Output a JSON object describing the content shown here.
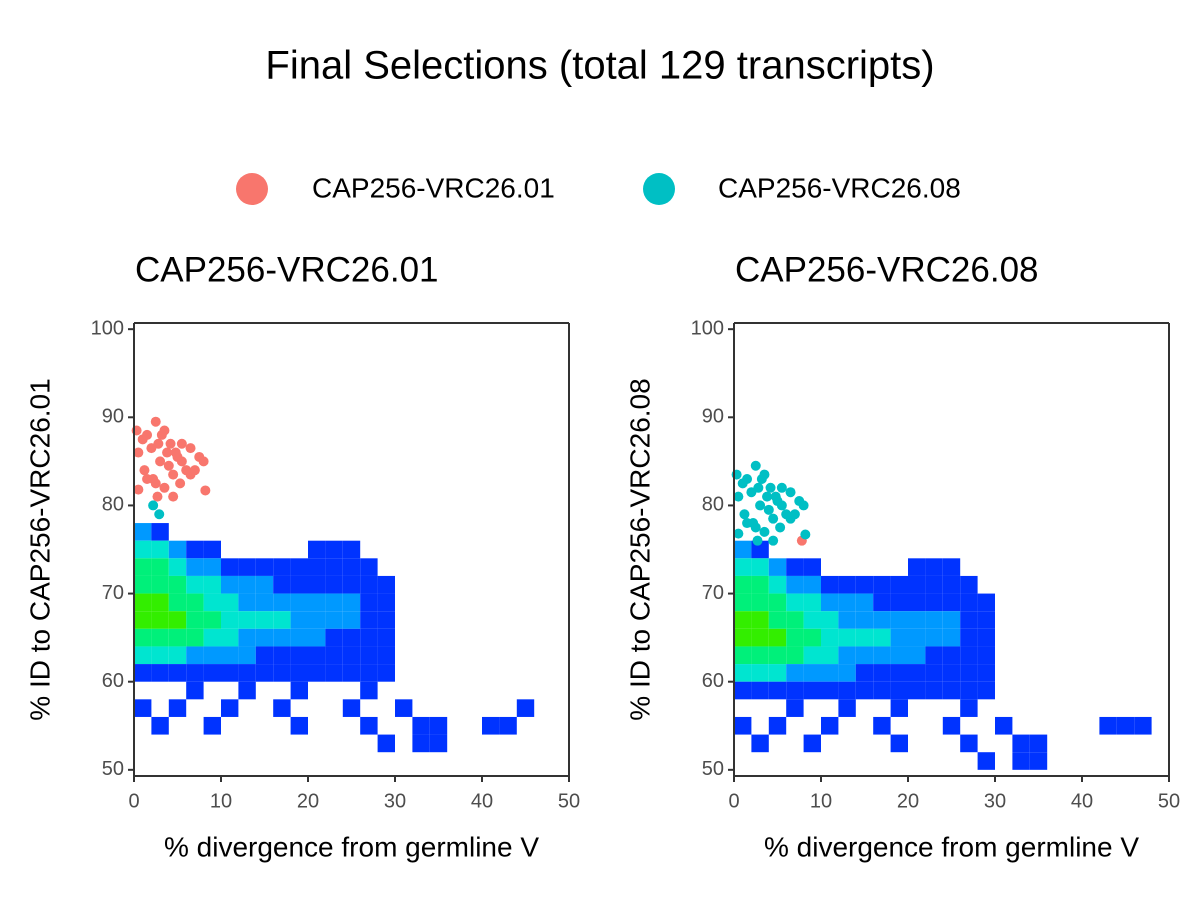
{
  "title": "Final Selections (total 129 transcripts)",
  "chart_data": [
    {
      "type": "scatter",
      "title": "CAP256-VRC26.01",
      "x_label": "% divergence from germline V",
      "y_label": "% ID to CAP256-VRC26.01",
      "xlim": [
        0,
        50
      ],
      "ylim": [
        49.3,
        100.7
      ],
      "xticks": [
        0,
        10,
        20,
        30,
        40,
        50
      ],
      "yticks": [
        50,
        60,
        70,
        80,
        90,
        100
      ],
      "series": [
        {
          "name": "CAP256-VRC26.01",
          "color": "#f8766d",
          "x": [
            0.3,
            0.5,
            1,
            1.2,
            1.5,
            2,
            2.2,
            2.5,
            2.8,
            3,
            3.2,
            3.5,
            3.8,
            4,
            4.2,
            4.5,
            5,
            5.3,
            5.5,
            6,
            6.5,
            7,
            7.5,
            8,
            0.5,
            1.5,
            2.5,
            3.5,
            4.5,
            5.5,
            6.5,
            8.2,
            2.7,
            4.8
          ],
          "values": [
            88.5,
            86,
            87.5,
            84,
            88,
            86.5,
            83,
            89.5,
            87,
            85,
            88,
            82,
            86,
            84.5,
            87,
            83.5,
            85.5,
            82.5,
            87,
            84,
            86.5,
            84,
            85.5,
            85,
            81.8,
            83,
            82.5,
            88.5,
            81,
            85,
            83.5,
            81.7,
            81,
            86
          ]
        },
        {
          "name": "CAP256-VRC26.08",
          "color": "#00bfc4",
          "x": [
            2.2,
            2.9
          ],
          "values": [
            80,
            79
          ]
        }
      ],
      "heatmap": {
        "x": [
          1,
          3,
          1,
          3,
          5,
          7,
          9,
          21,
          23,
          25,
          1,
          3,
          5,
          7,
          9,
          11,
          13,
          15,
          17,
          19,
          21,
          23,
          25,
          27,
          1,
          3,
          5,
          7,
          9,
          11,
          13,
          15,
          17,
          19,
          21,
          23,
          25,
          27,
          29,
          1,
          3,
          5,
          7,
          9,
          11,
          13,
          15,
          17,
          19,
          21,
          23,
          25,
          27,
          29,
          1,
          3,
          5,
          7,
          9,
          11,
          13,
          15,
          17,
          19,
          21,
          23,
          25,
          27,
          29,
          1,
          3,
          5,
          7,
          9,
          11,
          13,
          15,
          17,
          19,
          21,
          23,
          25,
          27,
          29,
          1,
          3,
          5,
          7,
          9,
          11,
          13,
          15,
          17,
          19,
          21,
          23,
          25,
          27,
          29,
          1,
          3,
          5,
          7,
          9,
          11,
          13,
          15,
          17,
          19,
          21,
          23,
          25,
          27,
          29,
          7,
          13,
          19,
          27,
          1,
          5,
          11,
          17,
          25,
          31,
          45,
          3,
          9,
          19,
          27,
          33,
          35,
          41,
          43,
          29,
          33,
          35
        ],
        "y": [
          77,
          77,
          75,
          75,
          75,
          75,
          75,
          75,
          75,
          75,
          73,
          73,
          73,
          73,
          73,
          73,
          73,
          73,
          73,
          73,
          73,
          73,
          73,
          73,
          71,
          71,
          71,
          71,
          71,
          71,
          71,
          71,
          71,
          71,
          71,
          71,
          71,
          71,
          71,
          69,
          69,
          69,
          69,
          69,
          69,
          69,
          69,
          69,
          69,
          69,
          69,
          69,
          69,
          69,
          67,
          67,
          67,
          67,
          67,
          67,
          67,
          67,
          67,
          67,
          67,
          67,
          67,
          67,
          67,
          65,
          65,
          65,
          65,
          65,
          65,
          65,
          65,
          65,
          65,
          65,
          65,
          65,
          65,
          65,
          63,
          63,
          63,
          63,
          63,
          63,
          63,
          63,
          63,
          63,
          63,
          63,
          63,
          63,
          63,
          61,
          61,
          61,
          61,
          61,
          61,
          61,
          61,
          61,
          61,
          61,
          61,
          61,
          61,
          61,
          59,
          59,
          59,
          59,
          57,
          57,
          57,
          57,
          57,
          57,
          57,
          55,
          55,
          55,
          55,
          55,
          55,
          55,
          55,
          53,
          53,
          53
        ],
        "density": [
          2,
          1,
          3,
          3,
          2,
          1,
          1,
          1,
          1,
          1,
          4,
          4,
          3,
          2,
          2,
          1,
          1,
          1,
          1,
          1,
          1,
          1,
          1,
          1,
          4,
          4,
          4,
          3,
          3,
          2,
          2,
          2,
          1,
          1,
          1,
          1,
          1,
          1,
          1,
          5,
          5,
          4,
          4,
          3,
          3,
          2,
          2,
          2,
          2,
          2,
          2,
          2,
          1,
          1,
          5,
          5,
          5,
          4,
          4,
          3,
          3,
          3,
          3,
          2,
          2,
          2,
          2,
          1,
          1,
          4,
          4,
          4,
          4,
          3,
          3,
          2,
          2,
          2,
          2,
          2,
          1,
          1,
          1,
          1,
          3,
          3,
          3,
          2,
          2,
          2,
          2,
          1,
          1,
          1,
          1,
          1,
          1,
          1,
          1,
          1,
          1,
          1,
          1,
          1,
          1,
          1,
          1,
          1,
          1,
          1,
          1,
          1,
          1,
          1,
          1,
          1,
          1,
          1,
          1,
          1,
          1,
          1,
          1,
          1,
          1,
          1,
          1,
          1,
          1,
          1,
          1,
          1,
          1,
          1,
          1,
          1
        ],
        "colors": [
          "#0033ff",
          "#0099ff",
          "#00e5d0",
          "#00f07a",
          "#33ee00"
        ]
      }
    },
    {
      "type": "scatter",
      "title": "CAP256-VRC26.08",
      "x_label": "% divergence from germline V",
      "y_label": "% ID to CAP256-VRC26.08",
      "xlim": [
        0,
        50
      ],
      "ylim": [
        49.3,
        100.7
      ],
      "xticks": [
        0,
        10,
        20,
        30,
        40,
        50
      ],
      "yticks": [
        50,
        60,
        70,
        80,
        90,
        100
      ],
      "series": [
        {
          "name": "CAP256-VRC26.01",
          "color": "#f8766d",
          "x": [
            7.8
          ],
          "values": [
            76
          ]
        },
        {
          "name": "CAP256-VRC26.08",
          "color": "#00bfc4",
          "x": [
            0.3,
            0.5,
            1,
            1.2,
            1.5,
            2,
            2.2,
            2.5,
            2.8,
            3,
            3.2,
            3.5,
            3.8,
            4,
            4.2,
            4.5,
            5,
            5.3,
            5.5,
            6,
            6.5,
            7,
            7.5,
            8,
            0.5,
            1.5,
            2.5,
            3.5,
            4.5,
            5.5,
            6.5,
            8.2,
            2.7,
            4.8
          ],
          "values": [
            83.5,
            81,
            82.5,
            79,
            83,
            81.5,
            78,
            84.5,
            82,
            80,
            83,
            77,
            81,
            79.5,
            82,
            78.5,
            80.5,
            77.5,
            82,
            79,
            81.5,
            79,
            80.5,
            80,
            76.8,
            78,
            77.5,
            83.5,
            76,
            80,
            78.5,
            76.7,
            76,
            81
          ]
        }
      ],
      "heatmap": {
        "x": [
          1,
          3,
          1,
          3,
          5,
          7,
          9,
          21,
          23,
          25,
          1,
          3,
          5,
          7,
          9,
          11,
          13,
          15,
          17,
          19,
          21,
          23,
          25,
          27,
          1,
          3,
          5,
          7,
          9,
          11,
          13,
          15,
          17,
          19,
          21,
          23,
          25,
          27,
          29,
          1,
          3,
          5,
          7,
          9,
          11,
          13,
          15,
          17,
          19,
          21,
          23,
          25,
          27,
          29,
          1,
          3,
          5,
          7,
          9,
          11,
          13,
          15,
          17,
          19,
          21,
          23,
          25,
          27,
          29,
          1,
          3,
          5,
          7,
          9,
          11,
          13,
          15,
          17,
          19,
          21,
          23,
          25,
          27,
          29,
          1,
          3,
          5,
          7,
          9,
          11,
          13,
          15,
          17,
          19,
          21,
          23,
          25,
          27,
          29,
          1,
          3,
          5,
          7,
          9,
          11,
          13,
          15,
          17,
          19,
          21,
          23,
          25,
          27,
          29,
          7,
          13,
          19,
          27,
          1,
          5,
          11,
          17,
          25,
          31,
          43,
          3,
          9,
          19,
          27,
          33,
          35,
          45,
          47,
          29,
          33,
          35
        ],
        "y": [
          75,
          75,
          73,
          73,
          73,
          73,
          73,
          73,
          73,
          73,
          71,
          71,
          71,
          71,
          71,
          71,
          71,
          71,
          71,
          71,
          71,
          71,
          71,
          71,
          69,
          69,
          69,
          69,
          69,
          69,
          69,
          69,
          69,
          69,
          69,
          69,
          69,
          69,
          69,
          67,
          67,
          67,
          67,
          67,
          67,
          67,
          67,
          67,
          67,
          67,
          67,
          67,
          67,
          67,
          65,
          65,
          65,
          65,
          65,
          65,
          65,
          65,
          65,
          65,
          65,
          65,
          65,
          65,
          65,
          63,
          63,
          63,
          63,
          63,
          63,
          63,
          63,
          63,
          63,
          63,
          63,
          63,
          63,
          63,
          61,
          61,
          61,
          61,
          61,
          61,
          61,
          61,
          61,
          61,
          61,
          61,
          61,
          61,
          61,
          59,
          59,
          59,
          59,
          59,
          59,
          59,
          59,
          59,
          59,
          59,
          59,
          59,
          59,
          59,
          57,
          57,
          57,
          57,
          55,
          55,
          55,
          55,
          55,
          55,
          55,
          53,
          53,
          53,
          53,
          53,
          53,
          55,
          55,
          51,
          51,
          51
        ],
        "density": [
          2,
          1,
          3,
          3,
          2,
          1,
          1,
          1,
          1,
          1,
          4,
          4,
          3,
          2,
          2,
          1,
          1,
          1,
          1,
          1,
          1,
          1,
          1,
          1,
          4,
          4,
          4,
          3,
          3,
          2,
          2,
          2,
          1,
          1,
          1,
          1,
          1,
          1,
          1,
          5,
          5,
          4,
          4,
          3,
          3,
          2,
          2,
          2,
          2,
          2,
          2,
          2,
          1,
          1,
          5,
          5,
          5,
          4,
          4,
          3,
          3,
          3,
          3,
          2,
          2,
          2,
          2,
          1,
          1,
          4,
          4,
          4,
          4,
          3,
          3,
          2,
          2,
          2,
          2,
          2,
          1,
          1,
          1,
          1,
          3,
          3,
          3,
          2,
          2,
          2,
          2,
          1,
          1,
          1,
          1,
          1,
          1,
          1,
          1,
          1,
          1,
          1,
          1,
          1,
          1,
          1,
          1,
          1,
          1,
          1,
          1,
          1,
          1,
          1,
          1,
          1,
          1,
          1,
          1,
          1,
          1,
          1,
          1,
          1,
          1,
          1,
          1,
          1,
          1,
          1,
          1,
          1,
          1,
          1,
          1,
          1
        ],
        "colors": [
          "#0033ff",
          "#0099ff",
          "#00e5d0",
          "#00f07a",
          "#33ee00"
        ]
      }
    }
  ]
}
